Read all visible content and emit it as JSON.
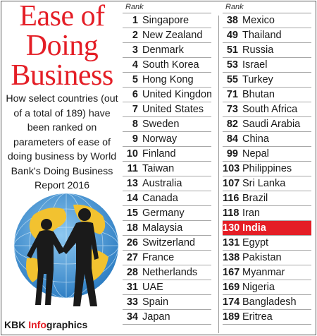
{
  "title": [
    "Ease of",
    "Doing",
    "Business"
  ],
  "description": "How select countries (out of a total of 189) have been ranked on parameters of ease of doing business by World Bank's Doing Business Report 2016",
  "credit": {
    "prefix": "KBK ",
    "accent": "Info",
    "suffix": "graphics"
  },
  "rank_header": "Rank",
  "colors": {
    "accent": "#e41e26",
    "globe": "#3a8fd0",
    "land": "#f2c230"
  },
  "illustration": "globe-handshake-illustration",
  "column1": [
    {
      "rank": "1",
      "country": "Singapore"
    },
    {
      "rank": "2",
      "country": "New Zealand"
    },
    {
      "rank": "3",
      "country": "Denmark"
    },
    {
      "rank": "4",
      "country": "South Korea"
    },
    {
      "rank": "5",
      "country": "Hong Kong"
    },
    {
      "rank": "6",
      "country": "United Kingdom"
    },
    {
      "rank": "7",
      "country": "United States"
    },
    {
      "rank": "8",
      "country": "Sweden"
    },
    {
      "rank": "9",
      "country": "Norway"
    },
    {
      "rank": "10",
      "country": "Finland"
    },
    {
      "rank": "11",
      "country": "Taiwan"
    },
    {
      "rank": "13",
      "country": "Australia"
    },
    {
      "rank": "14",
      "country": "Canada"
    },
    {
      "rank": "15",
      "country": "Germany"
    },
    {
      "rank": "18",
      "country": "Malaysia"
    },
    {
      "rank": "26",
      "country": "Switzerland"
    },
    {
      "rank": "27",
      "country": "France"
    },
    {
      "rank": "28",
      "country": "Netherlands"
    },
    {
      "rank": "31",
      "country": "UAE"
    },
    {
      "rank": "33",
      "country": "Spain"
    },
    {
      "rank": "34",
      "country": "Japan"
    }
  ],
  "column2": [
    {
      "rank": "38",
      "country": "Mexico"
    },
    {
      "rank": "49",
      "country": "Thailand"
    },
    {
      "rank": "51",
      "country": "Russia"
    },
    {
      "rank": "53",
      "country": "Israel"
    },
    {
      "rank": "55",
      "country": "Turkey"
    },
    {
      "rank": "71",
      "country": "Bhutan"
    },
    {
      "rank": "73",
      "country": "South Africa"
    },
    {
      "rank": "82",
      "country": "Saudi Arabia"
    },
    {
      "rank": "84",
      "country": "China"
    },
    {
      "rank": "99",
      "country": "Nepal"
    },
    {
      "rank": "103",
      "country": "Philippines"
    },
    {
      "rank": "107",
      "country": "Sri Lanka"
    },
    {
      "rank": "116",
      "country": "Brazil"
    },
    {
      "rank": "118",
      "country": "Iran"
    },
    {
      "rank": "130",
      "country": "India",
      "highlight": true
    },
    {
      "rank": "131",
      "country": "Egypt"
    },
    {
      "rank": "138",
      "country": "Pakistan"
    },
    {
      "rank": "167",
      "country": "Myanmar"
    },
    {
      "rank": "169",
      "country": "Nigeria"
    },
    {
      "rank": "174",
      "country": "Bangladesh"
    },
    {
      "rank": "189",
      "country": "Eritrea"
    }
  ]
}
